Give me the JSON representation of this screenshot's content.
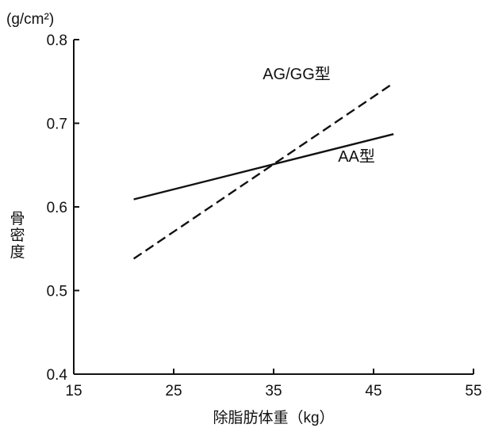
{
  "chart_data": {
    "type": "line",
    "xlabel": "除脂肪体重（kg）",
    "ylabel": "骨密度",
    "y_unit": "(g/cm²)",
    "xlim": [
      15,
      55
    ],
    "ylim": [
      0.4,
      0.8
    ],
    "x_ticks": [
      "15",
      "25",
      "35",
      "45",
      "55"
    ],
    "y_ticks": [
      "0.4",
      "0.5",
      "0.6",
      "0.7",
      "0.8"
    ],
    "grid": false,
    "series": [
      {
        "name": "AA型",
        "style": "solid",
        "color": "#111111",
        "x": [
          21,
          47
        ],
        "y": [
          0.609,
          0.687
        ]
      },
      {
        "name": "AG/GG型",
        "style": "dashed",
        "color": "#111111",
        "x": [
          21,
          47
        ],
        "y": [
          0.538,
          0.748
        ]
      }
    ]
  }
}
